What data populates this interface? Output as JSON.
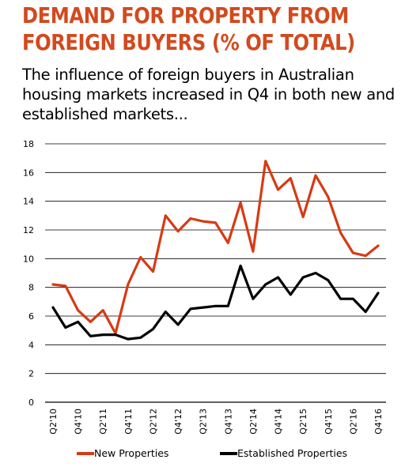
{
  "title": "DEMAND FOR PROPERTY FROM FOREIGN BUYERS (% OF TOTAL)",
  "subtitle": "The influence of foreign buyers in Australian housing markets increased in Q4 in both new and established markets...",
  "colors": {
    "title": "#d24a1e",
    "new": "#d63b14",
    "established": "#000000",
    "grid": "#000000"
  },
  "chart_data": {
    "type": "line",
    "title": "",
    "xlabel": "",
    "ylabel": "",
    "ylim": [
      0,
      18
    ],
    "yticks": [
      0,
      2,
      4,
      6,
      8,
      10,
      12,
      14,
      16,
      18
    ],
    "grid": true,
    "legend_position": "bottom",
    "x": [
      "Q2'10",
      "Q3'10",
      "Q4'10",
      "Q1'11",
      "Q2'11",
      "Q3'11",
      "Q4'11",
      "Q1'12",
      "Q2'12",
      "Q3'12",
      "Q4'12",
      "Q1'13",
      "Q2'13",
      "Q3'13",
      "Q4'13",
      "Q1'14",
      "Q2'14",
      "Q3'14",
      "Q4'14",
      "Q1'15",
      "Q2'15",
      "Q3'15",
      "Q4'15",
      "Q1'16",
      "Q2'16",
      "Q3'16",
      "Q4'16"
    ],
    "xtick_labels": [
      "Q2'10",
      "",
      "Q4'10",
      "",
      "Q2'11",
      "",
      "Q4'11",
      "",
      "Q2'12",
      "",
      "Q4'12",
      "",
      "Q2'13",
      "",
      "Q4'13",
      "",
      "Q2'14",
      "",
      "Q4'14",
      "",
      "Q2'15",
      "",
      "Q4'15",
      "",
      "Q2'16",
      "",
      "Q4'16"
    ],
    "series": [
      {
        "name": "New Properties",
        "values": [
          8.2,
          8.1,
          6.4,
          5.6,
          6.4,
          4.8,
          8.2,
          10.1,
          9.1,
          13.0,
          11.9,
          12.8,
          12.6,
          12.5,
          11.1,
          13.9,
          10.5,
          16.8,
          14.8,
          15.6,
          12.9,
          15.8,
          14.3,
          11.8,
          10.4,
          10.2,
          10.9
        ]
      },
      {
        "name": "Established Properties",
        "values": [
          6.6,
          5.2,
          5.6,
          4.6,
          4.7,
          4.7,
          4.4,
          4.5,
          5.1,
          6.3,
          5.4,
          6.5,
          6.6,
          6.7,
          6.7,
          9.5,
          7.2,
          8.2,
          8.7,
          7.5,
          8.7,
          9.0,
          8.5,
          7.2,
          7.2,
          6.3,
          7.6
        ]
      }
    ]
  }
}
